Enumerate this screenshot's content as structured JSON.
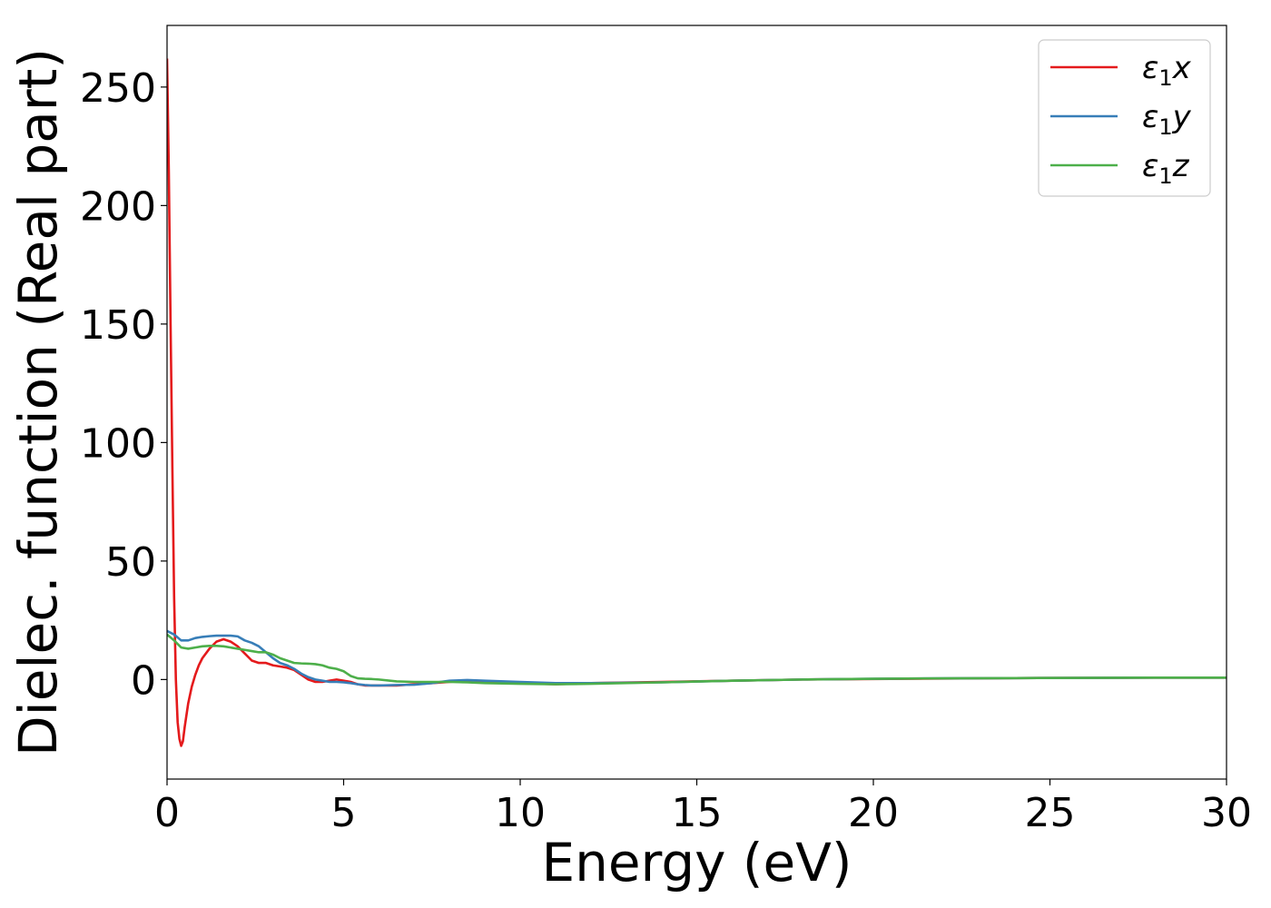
{
  "chart_data": {
    "type": "line",
    "title": "",
    "xlabel": "Energy (eV)",
    "ylabel": "Dielec. function (Real part)",
    "xlim": [
      0,
      30
    ],
    "ylim": [
      -42,
      276
    ],
    "xticks": [
      0,
      5,
      10,
      15,
      20,
      25,
      30
    ],
    "yticks": [
      0,
      50,
      100,
      150,
      200,
      250
    ],
    "grid": false,
    "legend_position": "top-right",
    "series": [
      {
        "name": "ε₁x",
        "legend_main": "ε",
        "legend_sub": "1",
        "legend_tail": "x",
        "color": "#e41a1c",
        "x": [
          0.0,
          0.05,
          0.1,
          0.15,
          0.2,
          0.25,
          0.3,
          0.35,
          0.4,
          0.45,
          0.5,
          0.6,
          0.7,
          0.8,
          0.9,
          1.0,
          1.2,
          1.4,
          1.6,
          1.8,
          2.0,
          2.2,
          2.4,
          2.6,
          2.8,
          3.0,
          3.2,
          3.4,
          3.6,
          3.8,
          4.0,
          4.2,
          4.4,
          4.6,
          4.8,
          5.0,
          5.2,
          5.4,
          5.6,
          5.8,
          6.0,
          6.5,
          7.0,
          7.5,
          8.0,
          8.5,
          9.0,
          10.0,
          11.0,
          12.0,
          14.0,
          16.0,
          18.0,
          20.0,
          22.0,
          24.0,
          26.0,
          28.0,
          30.0
        ],
        "y": [
          262,
          215,
          150,
          90,
          35,
          0,
          -18,
          -25,
          -28,
          -26,
          -20,
          -10,
          -3,
          2,
          6,
          9,
          13,
          16,
          17,
          16,
          14,
          11,
          8,
          7,
          7,
          6,
          5.5,
          5,
          4,
          2,
          0,
          -1,
          -1,
          -0.5,
          0,
          -0.5,
          -1,
          -2,
          -2.5,
          -2.5,
          -2.5,
          -2.5,
          -2,
          -1.5,
          -1,
          -0.5,
          -1,
          -1.5,
          -2,
          -1.5,
          -1,
          -0.5,
          0,
          0.2,
          0.4,
          0.6,
          0.7,
          0.8,
          0.8
        ]
      },
      {
        "name": "ε₁y",
        "legend_main": "ε",
        "legend_sub": "1",
        "legend_tail": "y",
        "color": "#377eb8",
        "x": [
          0.0,
          0.2,
          0.4,
          0.6,
          0.8,
          1.0,
          1.2,
          1.4,
          1.6,
          1.8,
          2.0,
          2.2,
          2.4,
          2.6,
          2.8,
          3.0,
          3.2,
          3.4,
          3.6,
          3.8,
          4.0,
          4.2,
          4.4,
          4.6,
          4.8,
          5.0,
          5.2,
          5.4,
          5.6,
          5.8,
          6.0,
          6.5,
          7.0,
          7.5,
          8.0,
          8.5,
          9.0,
          10.0,
          11.0,
          12.0,
          14.0,
          16.0,
          18.0,
          20.0,
          22.0,
          24.0,
          26.0,
          28.0,
          30.0
        ],
        "y": [
          20.5,
          19,
          16.5,
          16.5,
          17.5,
          18,
          18.3,
          18.5,
          18.5,
          18.5,
          18.2,
          16.5,
          15.5,
          14,
          11.5,
          9,
          7,
          6,
          4.5,
          2.5,
          1,
          0,
          -0.5,
          -1,
          -1,
          -1.2,
          -1.5,
          -2,
          -2.3,
          -2.5,
          -2.5,
          -2.3,
          -2.2,
          -1.5,
          -0.5,
          -0.2,
          -0.5,
          -1,
          -1.5,
          -1.5,
          -1.2,
          -0.5,
          0,
          0.3,
          0.5,
          0.6,
          0.7,
          0.8,
          0.8
        ]
      },
      {
        "name": "ε₁z",
        "legend_main": "ε",
        "legend_sub": "1",
        "legend_tail": "z",
        "color": "#4daf4a",
        "x": [
          0.0,
          0.2,
          0.4,
          0.6,
          0.8,
          1.0,
          1.2,
          1.4,
          1.6,
          1.8,
          2.0,
          2.2,
          2.4,
          2.6,
          2.8,
          3.0,
          3.2,
          3.4,
          3.6,
          3.8,
          4.0,
          4.2,
          4.4,
          4.6,
          4.8,
          5.0,
          5.2,
          5.4,
          5.6,
          5.8,
          6.0,
          6.5,
          7.0,
          7.5,
          8.0,
          8.5,
          9.0,
          10.0,
          11.0,
          12.0,
          14.0,
          16.0,
          18.0,
          20.0,
          22.0,
          24.0,
          26.0,
          28.0,
          30.0
        ],
        "y": [
          19,
          16.5,
          13.5,
          13,
          13.5,
          14,
          14.2,
          14.2,
          14,
          13.5,
          13,
          12.5,
          12,
          11.5,
          11.5,
          10.5,
          9,
          8,
          7,
          6.8,
          6.7,
          6.5,
          6,
          5,
          4.5,
          3.5,
          1.5,
          0.5,
          0.3,
          0.2,
          0,
          -0.8,
          -1,
          -1,
          -1,
          -1.2,
          -1.5,
          -1.8,
          -2,
          -1.8,
          -1.2,
          -0.5,
          0,
          0.3,
          0.5,
          0.6,
          0.7,
          0.8,
          0.8
        ]
      }
    ]
  }
}
